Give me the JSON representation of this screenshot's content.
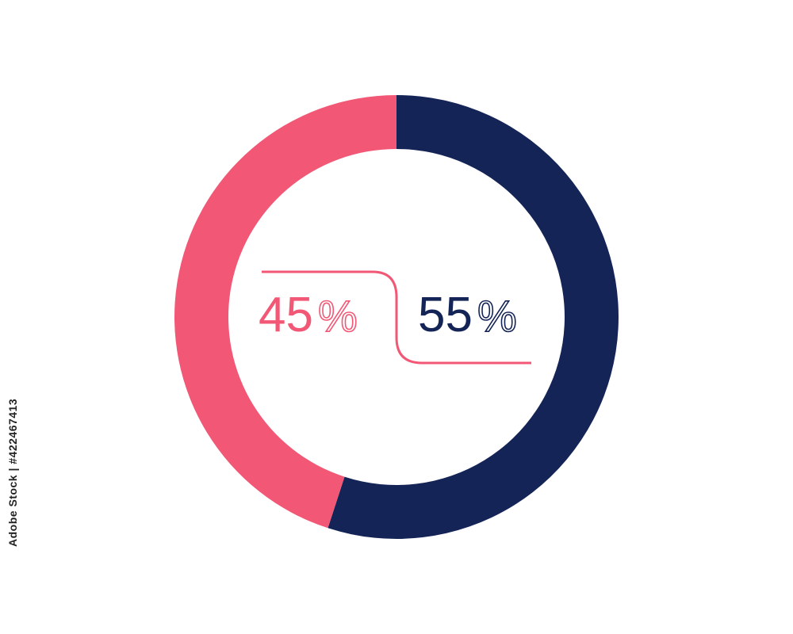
{
  "chart_data": {
    "type": "pie",
    "style": "donut",
    "start": "top",
    "direction": "clockwise",
    "slices": [
      {
        "label": "55%",
        "value": 55,
        "color": "#142456"
      },
      {
        "label": "45%",
        "value": 45,
        "color": "#f25876"
      }
    ],
    "connector_color": "#f25876",
    "legend": "none",
    "title": ""
  },
  "watermark": {
    "text": "Adobe Stock | #422467413"
  }
}
